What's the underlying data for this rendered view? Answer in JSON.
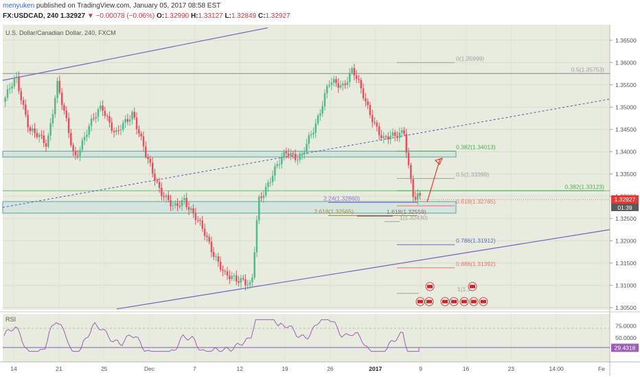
{
  "header": {
    "user": "menyuken",
    "published": "published on TradingView.com, January 05, 2017 08:58 EST",
    "symbol": "FX:USDCAD, 240",
    "last": "1.32927",
    "change_arrow": "▼",
    "change": "−0.00078 (−0.06%)",
    "ohlc": [
      {
        "k": "O:",
        "v": "1.32990"
      },
      {
        "k": "H:",
        "v": "1.33127"
      },
      {
        "k": "L:",
        "v": "1.32849"
      },
      {
        "k": "C:",
        "v": "1.32927"
      }
    ]
  },
  "chart_title": "U.S. Dollar/Canadian Dollar, 240, FXCM",
  "rsi_label": "RSI",
  "price_tag": "1.32927",
  "countdown": "01:39",
  "rsi_tag": "29.4318",
  "colors": {
    "plot_bg": "#e8ecdf",
    "bull": "#53b987",
    "bear": "#eb4d5c",
    "channel": "#7b5cc4",
    "zone_border": "#5aa2a0",
    "arrow": "#e53935",
    "price_tag_bg": "#e53935",
    "rsi_line": "#9c5bb5"
  },
  "chart_data": {
    "type": "candlestick",
    "price_axis": {
      "ylim": [
        1.3045,
        1.3685
      ],
      "ticks": [
        "1.36500",
        "1.36000",
        "1.35500",
        "1.35000",
        "1.34500",
        "1.34000",
        "1.33500",
        "1.33000",
        "1.32500",
        "1.32000",
        "1.31500",
        "1.31000",
        "1.30500"
      ]
    },
    "date_axis": {
      "ticks": [
        "14",
        "21",
        "25",
        "Dec",
        "7",
        "12",
        "19",
        "26",
        "2017",
        "9",
        "16",
        "23",
        "14:00",
        "Fe"
      ],
      "bold": [
        "2017"
      ]
    },
    "price_path": [
      [
        0,
        1.3495
      ],
      [
        25,
        1.3565
      ],
      [
        45,
        1.345
      ],
      [
        70,
        1.3415
      ],
      [
        85,
        1.3555
      ],
      [
        110,
        1.3385
      ],
      [
        130,
        1.345
      ],
      [
        150,
        1.3505
      ],
      [
        170,
        1.3435
      ],
      [
        195,
        1.349
      ],
      [
        215,
        1.3385
      ],
      [
        235,
        1.3315
      ],
      [
        255,
        1.327
      ],
      [
        270,
        1.3295
      ],
      [
        300,
        1.3215
      ],
      [
        330,
        1.3118
      ],
      [
        355,
        1.3115
      ],
      [
        368,
        1.3093
      ],
      [
        378,
        1.3288
      ],
      [
        400,
        1.3355
      ],
      [
        420,
        1.34
      ],
      [
        440,
        1.3385
      ],
      [
        460,
        1.3455
      ],
      [
        480,
        1.3555
      ],
      [
        500,
        1.3545
      ],
      [
        515,
        1.3588
      ],
      [
        535,
        1.3505
      ],
      [
        560,
        1.3425
      ],
      [
        575,
        1.3435
      ],
      [
        590,
        1.345
      ],
      [
        596,
        1.337
      ],
      [
        605,
        1.3285
      ],
      [
        612,
        1.33
      ]
    ],
    "fib_levels": [
      {
        "label": "0(1.35999)",
        "value": 1.35999,
        "color": "#9e9e9e"
      },
      {
        "label": "0.5(1.35753)",
        "value": 1.35753,
        "color": "#9e9e9e"
      },
      {
        "label": "0.382(1.34013)",
        "value": 1.34013,
        "color": "#4caf50"
      },
      {
        "label": "0.5(1.33399)",
        "value": 1.33399,
        "color": "#9e9e9e"
      },
      {
        "label": "0.382(1.33123)",
        "value": 1.33123,
        "color": "#4caf50"
      },
      {
        "label": "2.24(1.32860)",
        "value": 1.3286,
        "color": "#8e6bd8"
      },
      {
        "label": "0.618(1.32785)",
        "value": 1.32785,
        "color": "#e57373"
      },
      {
        "label": "2.618(1.32565)",
        "value": 1.32565,
        "color": "#a08a3a"
      },
      {
        "label": "1.618(1.32559)",
        "value": 1.32559,
        "color": "#8d6e63"
      },
      {
        "label": "1(1.32430)",
        "value": 1.3243,
        "color": "#9e9e9e"
      },
      {
        "label": "0.786(1.31912)",
        "value": 1.31912,
        "color": "#5c6bc0"
      },
      {
        "label": "0.886(1.31392)",
        "value": 1.31392,
        "color": "#e57373"
      },
      {
        "label": "1(1.3",
        "value": 1.3082,
        "color": "#9e9e9e"
      }
    ],
    "rsi": {
      "ylim": [
        0,
        100
      ],
      "ticks": [
        "75.0000",
        "50.0000"
      ],
      "overbought": 70,
      "oversold": 30,
      "last": 29.4318
    }
  }
}
